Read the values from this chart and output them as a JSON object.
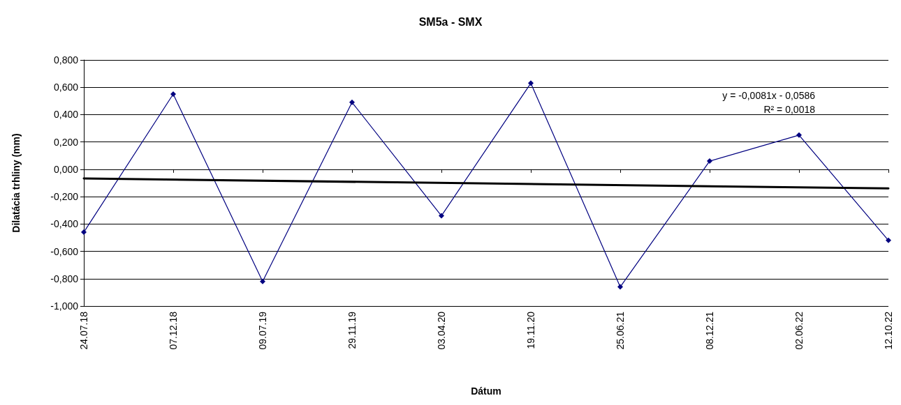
{
  "chart_data": {
    "type": "line",
    "title": "SM5a - SMX",
    "xlabel": "Dátum",
    "ylabel": "Dilatácia trhliny (mm)",
    "categories": [
      "24.07.18",
      "07.12.18",
      "09.07.19",
      "29.11.19",
      "03.04.20",
      "19.11.20",
      "25.06.21",
      "08.12.21",
      "02.06.22",
      "12.10.22"
    ],
    "series": [
      {
        "color": "#000080",
        "values": [
          -0.46,
          0.55,
          -0.82,
          0.49,
          -0.34,
          0.63,
          -0.86,
          0.06,
          0.25,
          -0.52
        ],
        "marker": "diamond"
      },
      {
        "type": "line",
        "color": "#000000",
        "x": [
          "24.07.18",
          "12.10.22"
        ],
        "values": [
          -0.067,
          -0.14
        ],
        "marker": "none"
      }
    ],
    "ylim": [
      -1,
      0.8
    ],
    "yticks": [
      {
        "value": -1,
        "label": "-1,000"
      },
      {
        "value": -0.8,
        "label": "-0,800"
      },
      {
        "value": -0.6,
        "label": "-0,600"
      },
      {
        "value": -0.4,
        "label": "-0,400"
      },
      {
        "value": -0.2,
        "label": "-0,200"
      },
      {
        "value": 0,
        "label": "0,000"
      },
      {
        "value": 0.2,
        "label": "0,200"
      },
      {
        "value": 0.4,
        "label": "0,400"
      },
      {
        "value": 0.6,
        "label": "0,600"
      },
      {
        "value": 0.8,
        "label": "0,800"
      }
    ],
    "grid": "y",
    "line_style": "solid",
    "annotations": [
      "y = -0,0081x - 0,0586",
      "R² = 0,0018"
    ]
  }
}
